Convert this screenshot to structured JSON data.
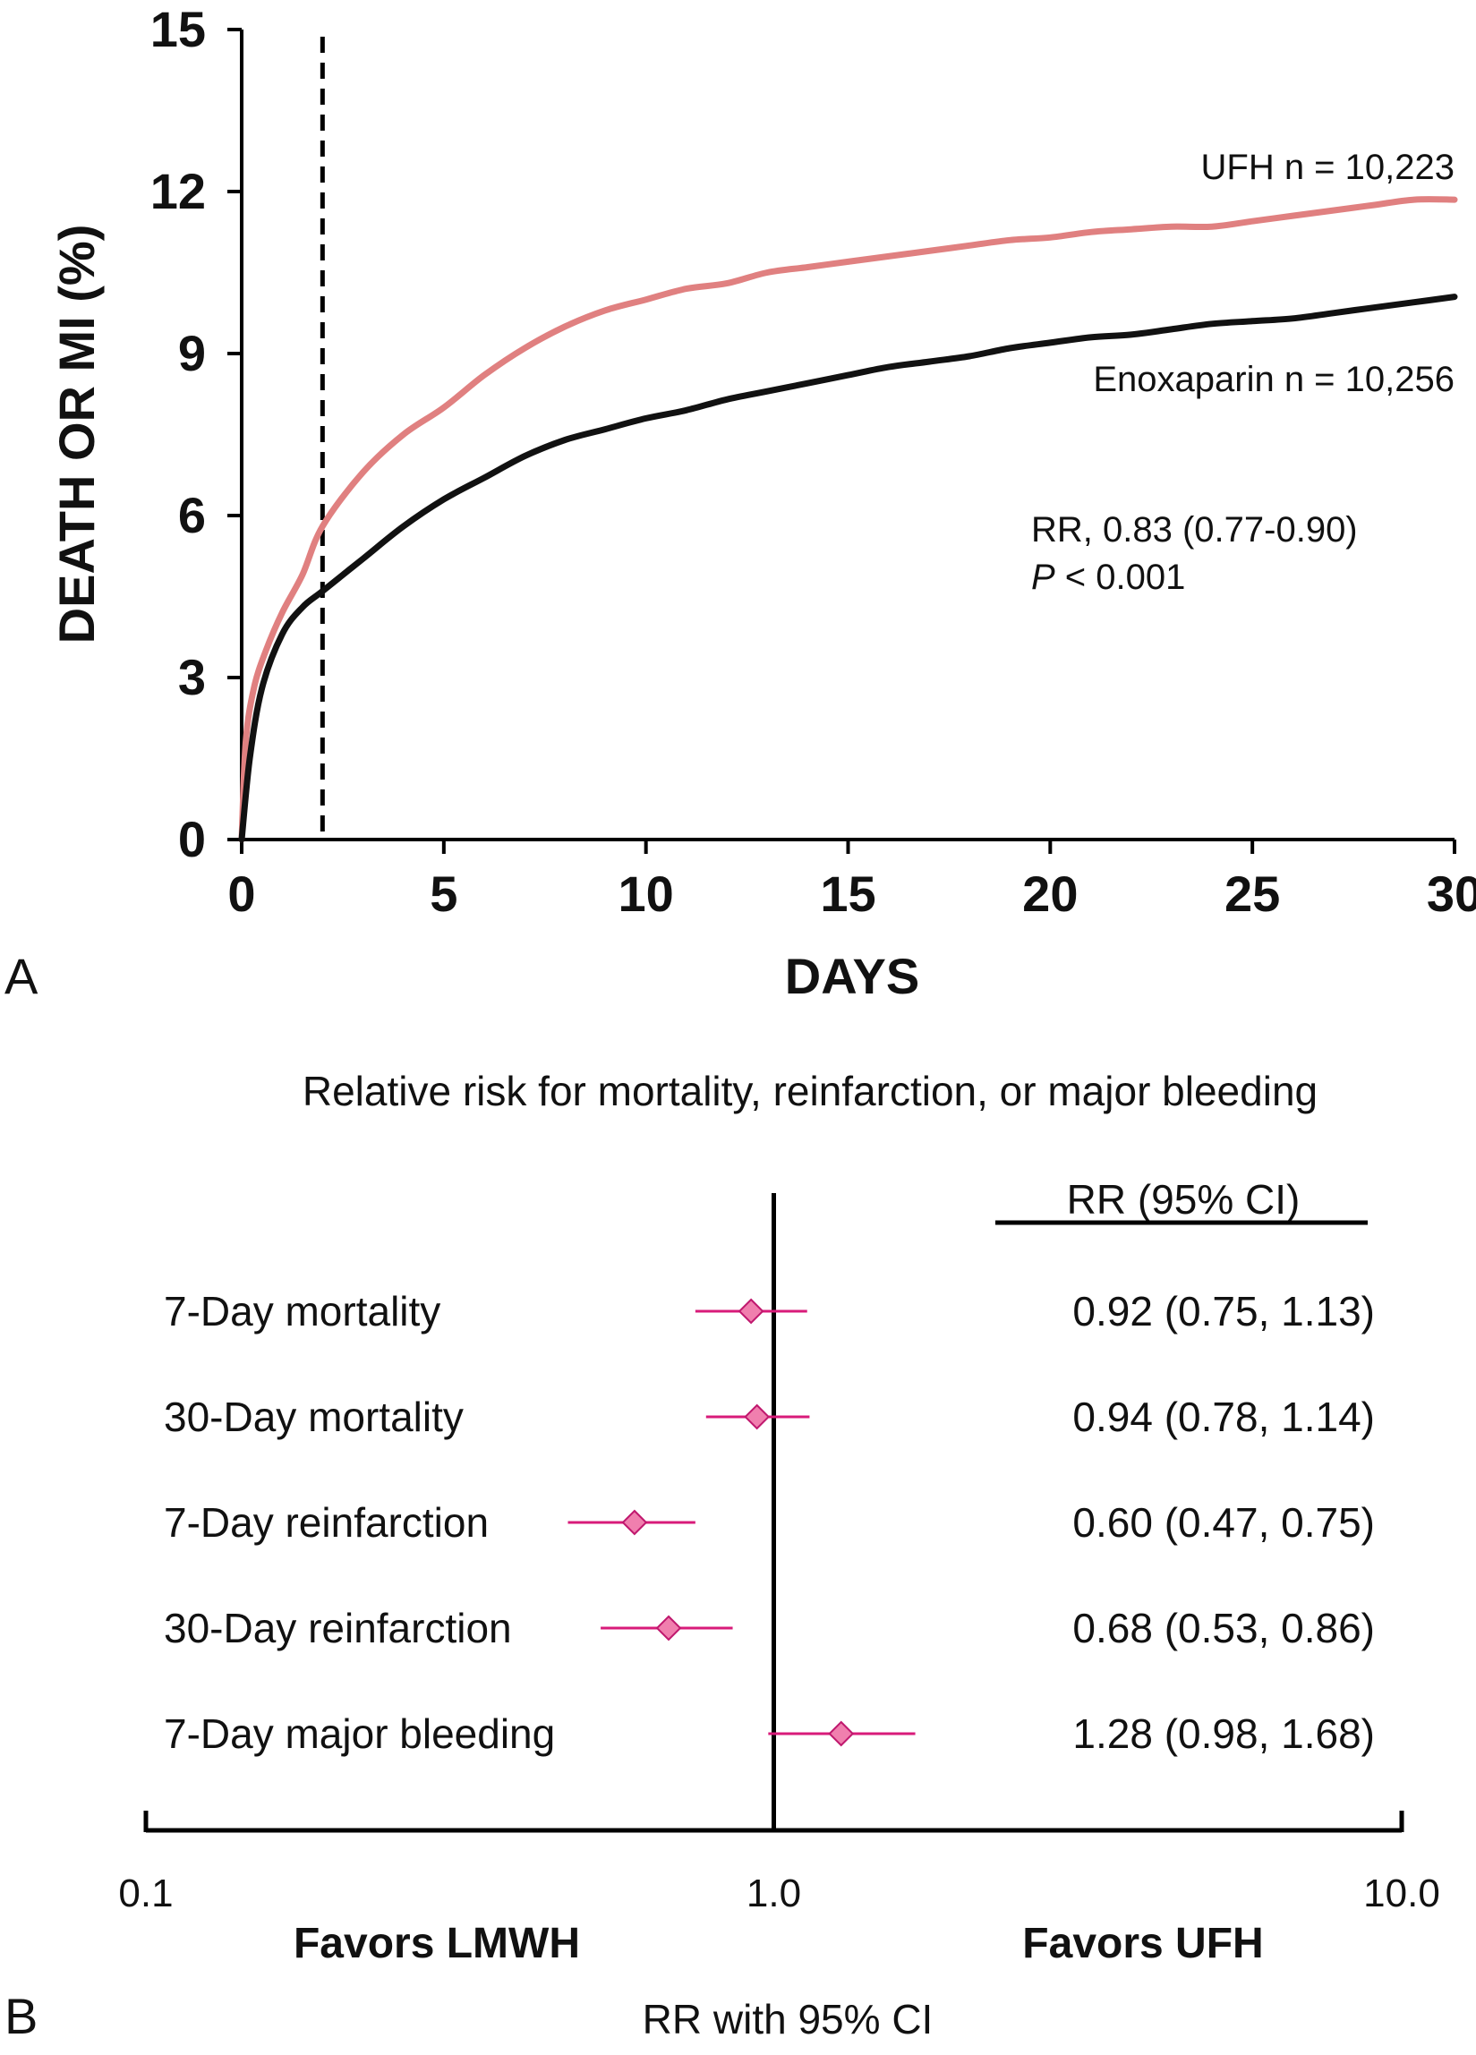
{
  "chart_data": [
    {
      "panel": "A",
      "type": "line",
      "xlabel": "DAYS",
      "ylabel": "DEATH OR MI (%)",
      "xlim": [
        0,
        30
      ],
      "ylim": [
        0,
        15
      ],
      "x_ticks": [
        0,
        5,
        10,
        15,
        20,
        25,
        30
      ],
      "y_ticks": [
        0,
        3,
        6,
        9,
        12,
        15
      ],
      "grid": false,
      "reference_line": {
        "x": 2,
        "style": "dashed"
      },
      "series": [
        {
          "name": "UFH",
          "label": "UFH n = 10,223",
          "color": "#E08080",
          "x": [
            0,
            0.1,
            0.3,
            0.6,
            1,
            1.5,
            2,
            3,
            4,
            5,
            6,
            7,
            8,
            9,
            10,
            11,
            12,
            13,
            14,
            15,
            16,
            17,
            18,
            19,
            20,
            21,
            22,
            23,
            24,
            25,
            26,
            27,
            28,
            29,
            30
          ],
          "values": [
            0,
            1.8,
            2.8,
            3.5,
            4.2,
            4.9,
            5.8,
            6.8,
            7.5,
            8.0,
            8.6,
            9.1,
            9.5,
            9.8,
            10.0,
            10.2,
            10.3,
            10.5,
            10.6,
            10.7,
            10.8,
            10.9,
            11.0,
            11.1,
            11.15,
            11.25,
            11.3,
            11.35,
            11.35,
            11.45,
            11.55,
            11.65,
            11.75,
            11.85,
            11.85
          ]
        },
        {
          "name": "Enoxaparin",
          "label": "Enoxaparin n = 10,256",
          "color": "#111111",
          "x": [
            0,
            0.2,
            0.5,
            1,
            1.5,
            2,
            3,
            4,
            5,
            6,
            7,
            8,
            9,
            10,
            11,
            12,
            13,
            14,
            15,
            16,
            17,
            18,
            19,
            20,
            21,
            22,
            23,
            24,
            25,
            26,
            27,
            28,
            29,
            30
          ],
          "values": [
            0,
            1.5,
            2.8,
            3.8,
            4.3,
            4.6,
            5.2,
            5.8,
            6.3,
            6.7,
            7.1,
            7.4,
            7.6,
            7.8,
            7.95,
            8.15,
            8.3,
            8.45,
            8.6,
            8.75,
            8.85,
            8.95,
            9.1,
            9.2,
            9.3,
            9.35,
            9.45,
            9.55,
            9.6,
            9.65,
            9.75,
            9.85,
            9.95,
            10.05
          ]
        }
      ],
      "annotations": {
        "rr": "RR, 0.83 (0.77-0.90)",
        "p_italic": "P",
        "p_rest": " < 0.001"
      }
    },
    {
      "panel": "B",
      "type": "forest",
      "title": "Relative risk for mortality, reinfarction, or major bleeding",
      "xlabel": "RR with 95% CI",
      "x_scale": "log",
      "xlim": [
        0.1,
        10.0
      ],
      "x_ticks": [
        0.1,
        1.0,
        10.0
      ],
      "x_tick_labels": [
        "0.1",
        "1.0",
        "10.0"
      ],
      "reference_line": 1.0,
      "left_label": "Favors LMWH",
      "right_label": "Favors UFH",
      "column_header": "RR (95% CI)",
      "marker_color": "#F07FAE",
      "marker_edge": "#C0186E",
      "line_color": "#D81B7A",
      "rows": [
        {
          "label": "7-Day mortality",
          "rr": 0.92,
          "lo": 0.75,
          "hi": 1.13,
          "text": "0.92 (0.75, 1.13)"
        },
        {
          "label": "30-Day mortality",
          "rr": 0.94,
          "lo": 0.78,
          "hi": 1.14,
          "text": "0.94 (0.78, 1.14)"
        },
        {
          "label": "7-Day reinfarction",
          "rr": 0.6,
          "lo": 0.47,
          "hi": 0.75,
          "text": "0.60 (0.47, 0.75)"
        },
        {
          "label": "30-Day reinfarction",
          "rr": 0.68,
          "lo": 0.53,
          "hi": 0.86,
          "text": "0.68 (0.53, 0.86)"
        },
        {
          "label": "7-Day major bleeding",
          "rr": 1.28,
          "lo": 0.98,
          "hi": 1.68,
          "text": "1.28 (0.98, 1.68)"
        }
      ]
    }
  ]
}
